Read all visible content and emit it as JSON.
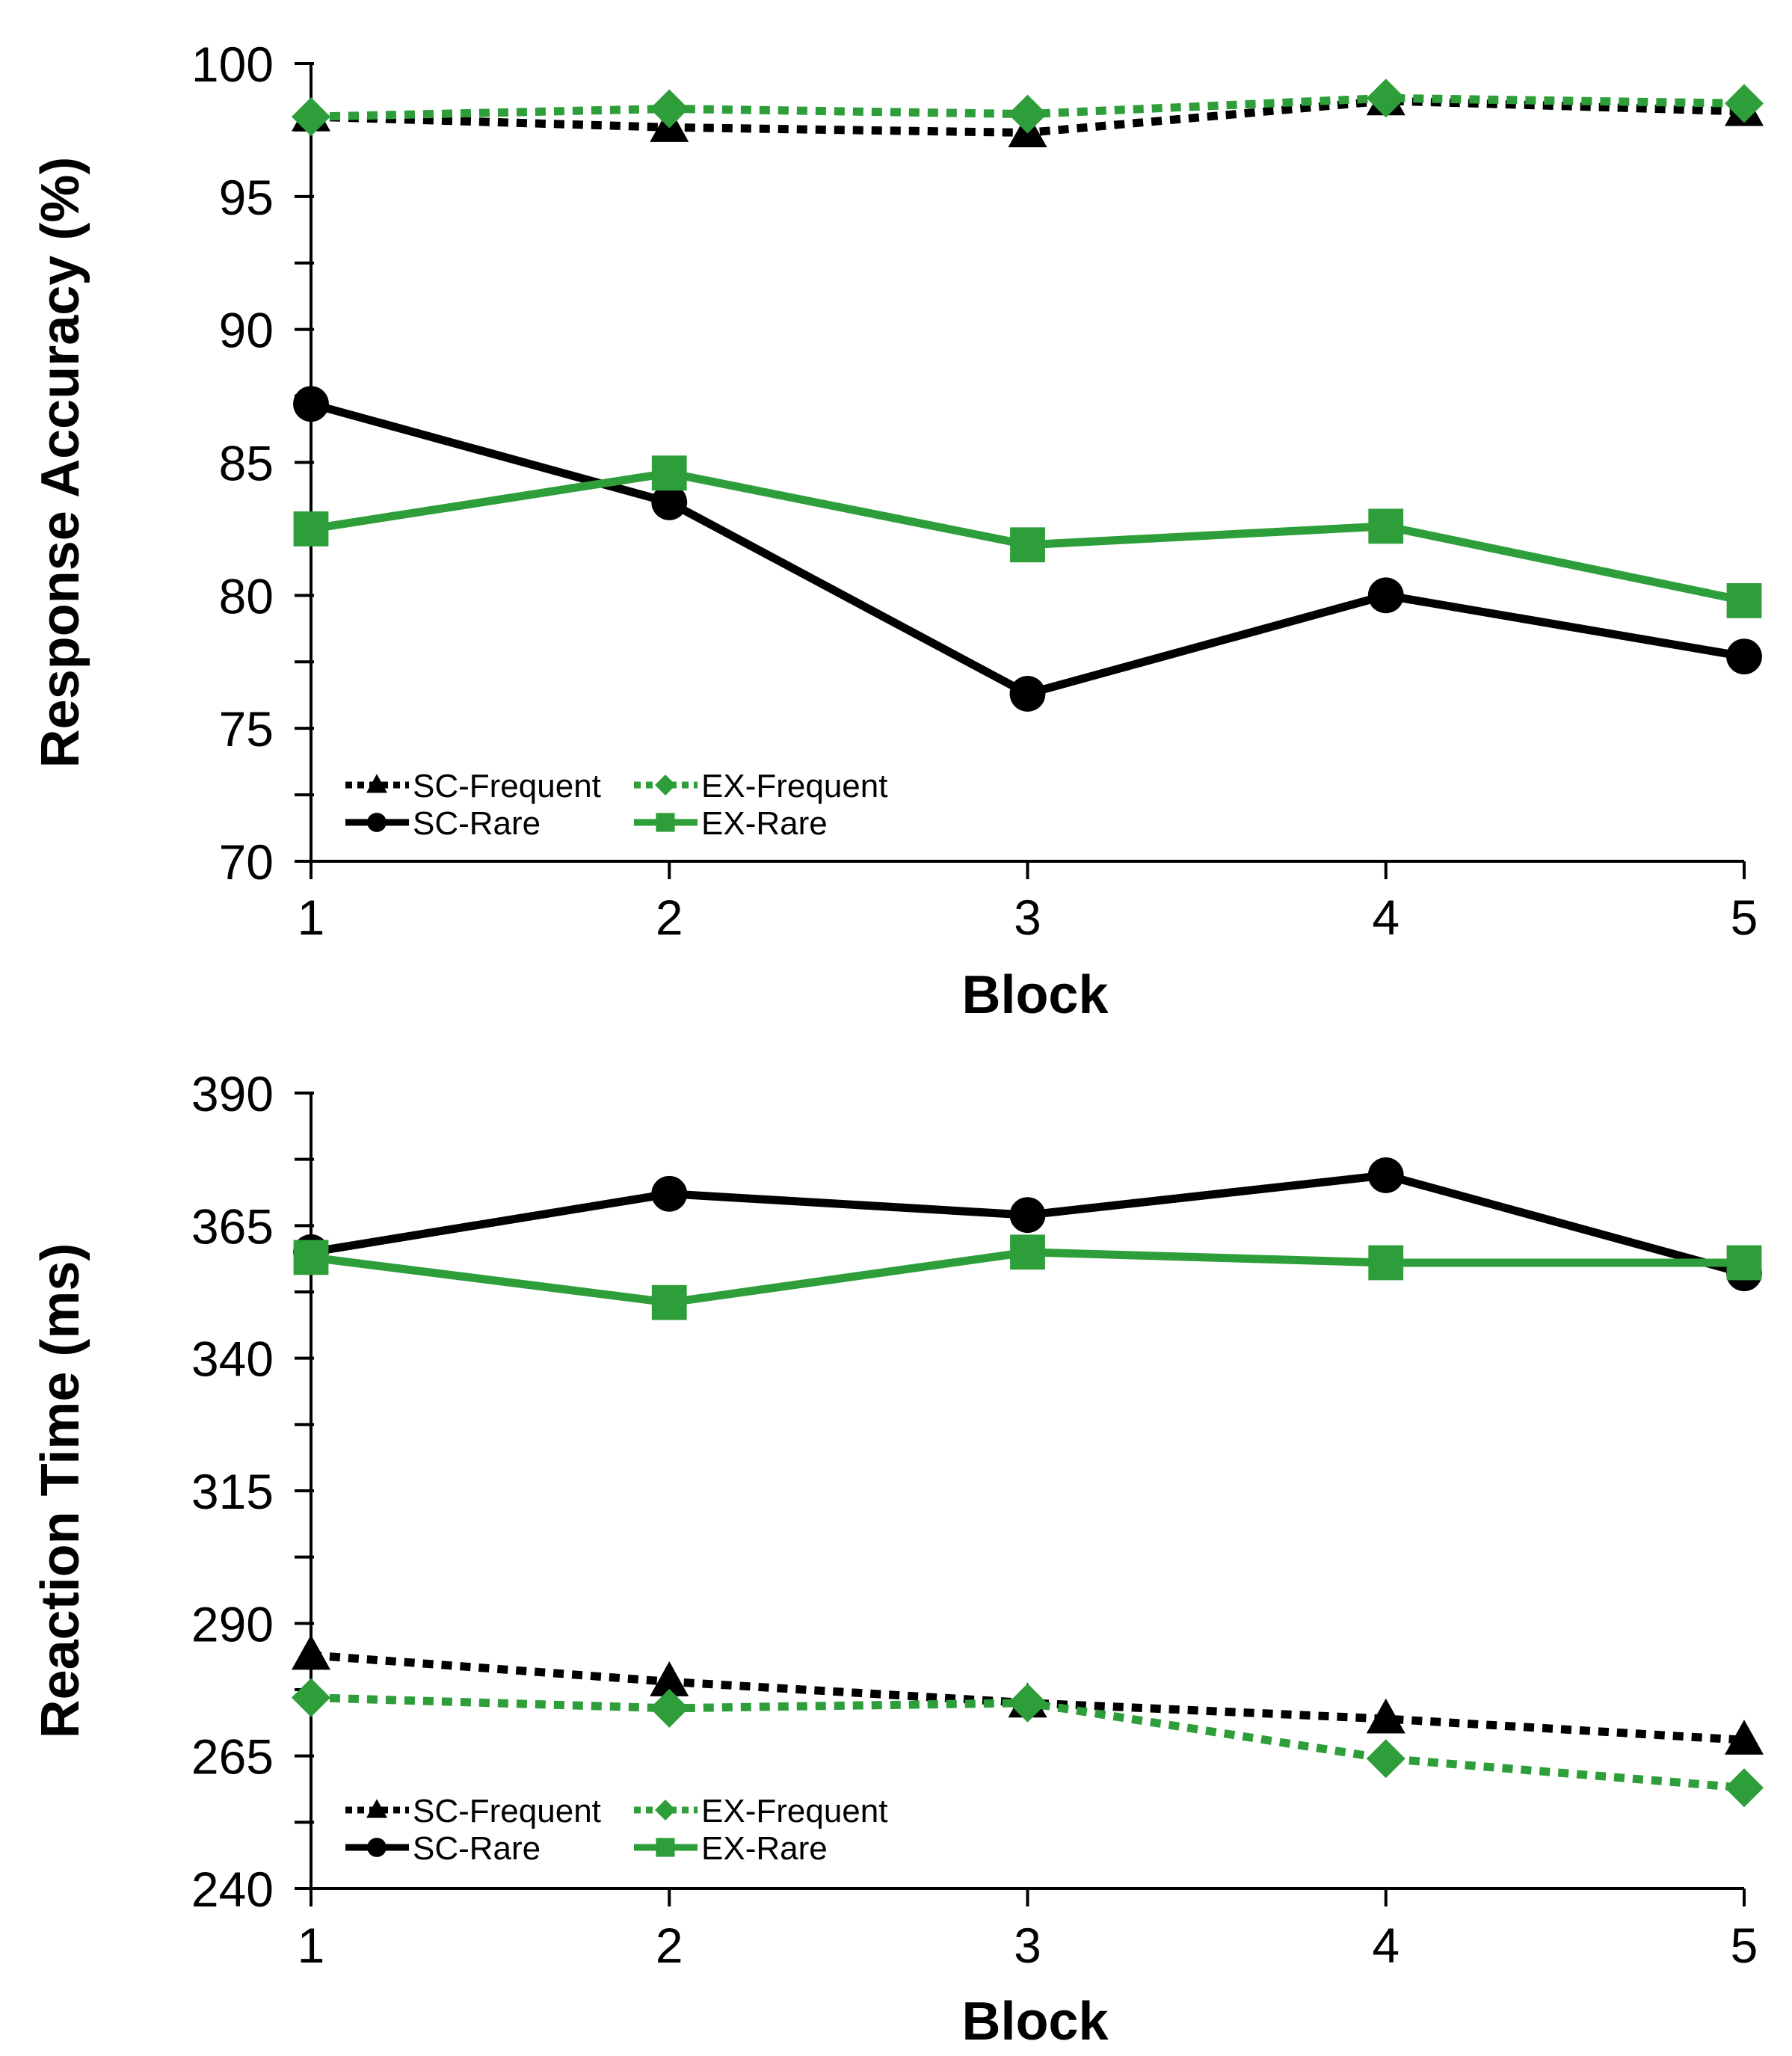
{
  "chart_data": [
    {
      "type": "line",
      "title": "",
      "xlabel": "Block",
      "ylabel": "Response Accuracy (%)",
      "x": [
        1,
        2,
        3,
        4,
        5
      ],
      "xticks": [
        "1",
        "2",
        "3",
        "4",
        "5"
      ],
      "ylim": [
        70,
        100
      ],
      "yticks": [
        "70",
        "75",
        "80",
        "85",
        "90",
        "95",
        "100"
      ],
      "ytick_values": [
        70,
        75,
        80,
        85,
        90,
        95,
        100
      ],
      "grid": false,
      "legend_position": "bottom-left",
      "series": [
        {
          "name": "SC-Frequent",
          "values": [
            98.0,
            97.6,
            97.4,
            98.6,
            98.2
          ],
          "color": "#000000",
          "dash": "dotted",
          "marker": "triangle"
        },
        {
          "name": "SC-Rare",
          "values": [
            87.2,
            83.5,
            76.3,
            80.0,
            77.7
          ],
          "color": "#000000",
          "dash": "solid",
          "marker": "circle"
        },
        {
          "name": "EX-Frequent",
          "values": [
            98.0,
            98.3,
            98.1,
            98.7,
            98.5
          ],
          "color": "#2e9e3a",
          "dash": "dotted",
          "marker": "diamond"
        },
        {
          "name": "EX-Rare",
          "values": [
            82.5,
            84.6,
            81.9,
            82.6,
            79.8
          ],
          "color": "#2e9e3a",
          "dash": "solid",
          "marker": "square"
        }
      ]
    },
    {
      "type": "line",
      "title": "",
      "xlabel": "Block",
      "ylabel": "Reaction Time (ms)",
      "x": [
        1,
        2,
        3,
        4,
        5
      ],
      "xticks": [
        "1",
        "2",
        "3",
        "4",
        "5"
      ],
      "ylim": [
        240,
        390
      ],
      "yticks": [
        "240",
        "265",
        "290",
        "315",
        "340",
        "365",
        "390"
      ],
      "ytick_values": [
        240,
        265,
        290,
        315,
        340,
        365,
        390
      ],
      "grid": false,
      "legend_position": "bottom-left",
      "series": [
        {
          "name": "SC-Frequent",
          "values": [
            284,
            279,
            275,
            272,
            268
          ],
          "color": "#000000",
          "dash": "dotted",
          "marker": "triangle"
        },
        {
          "name": "SC-Rare",
          "values": [
            360,
            371,
            367,
            374.5,
            356
          ],
          "color": "#000000",
          "dash": "solid",
          "marker": "circle"
        },
        {
          "name": "EX-Frequent",
          "values": [
            276,
            274,
            275,
            264.5,
            259
          ],
          "color": "#2e9e3a",
          "dash": "dotted",
          "marker": "diamond"
        },
        {
          "name": "EX-Rare",
          "values": [
            359,
            350.5,
            360,
            358,
            358
          ],
          "color": "#2e9e3a",
          "dash": "solid",
          "marker": "square"
        }
      ]
    }
  ]
}
